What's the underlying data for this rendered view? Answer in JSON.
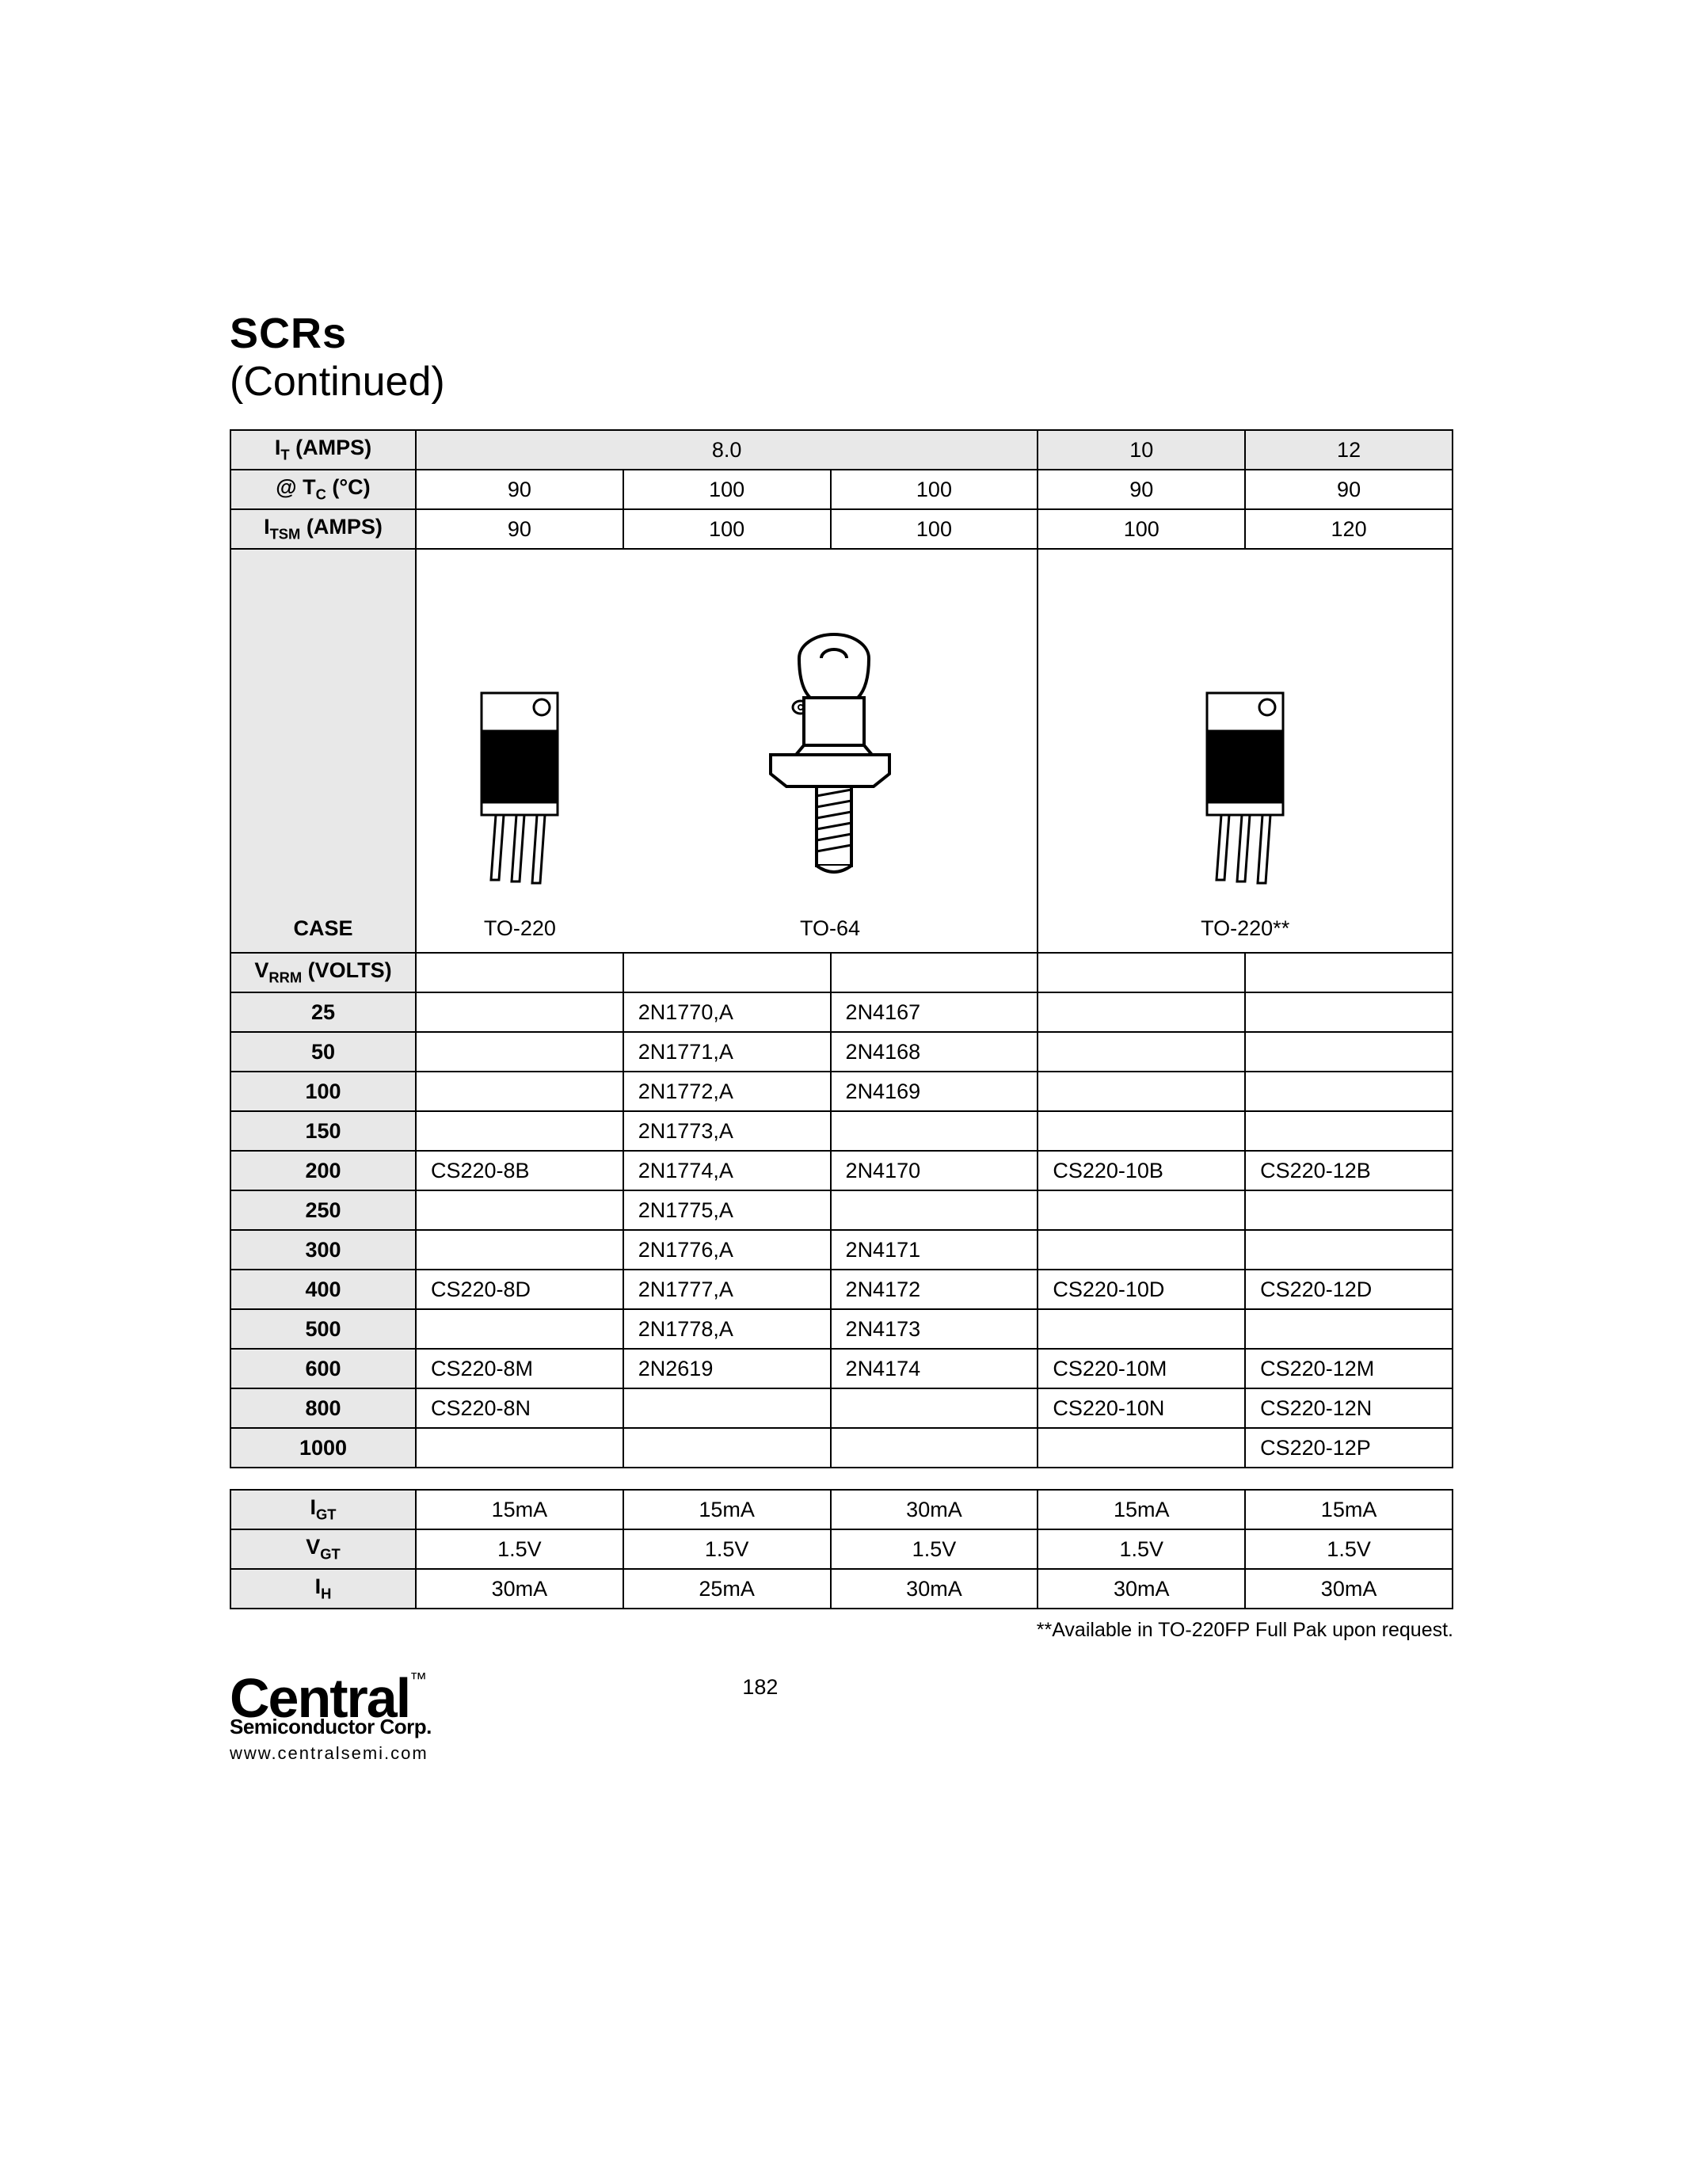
{
  "title": "SCRs",
  "subtitle": "(Continued)",
  "header_rows": {
    "it_label_html": "I<sub>T</sub> (AMPS)",
    "tc_label_html": "@ T<sub>C</sub> (°C)",
    "itsm_label_html": "I<sub>TSM</sub> (AMPS)",
    "it_values": [
      "8.0",
      "10",
      "12"
    ],
    "tc_values": [
      "90",
      "100",
      "100",
      "90",
      "90"
    ],
    "itsm_values": [
      "90",
      "100",
      "100",
      "100",
      "120"
    ]
  },
  "case_row": {
    "label": "CASE",
    "values": [
      "TO-220",
      "TO-64",
      "TO-220**"
    ]
  },
  "vrrm_label_html": "V<sub>RRM</sub> (VOLTS)",
  "part_rows": [
    {
      "v": "25",
      "cells": [
        "",
        "2N1770,A",
        "2N4167",
        "",
        ""
      ]
    },
    {
      "v": "50",
      "cells": [
        "",
        "2N1771,A",
        "2N4168",
        "",
        ""
      ]
    },
    {
      "v": "100",
      "cells": [
        "",
        "2N1772,A",
        "2N4169",
        "",
        ""
      ]
    },
    {
      "v": "150",
      "cells": [
        "",
        "2N1773,A",
        "",
        "",
        ""
      ]
    },
    {
      "v": "200",
      "cells": [
        "CS220-8B",
        "2N1774,A",
        "2N4170",
        "CS220-10B",
        "CS220-12B"
      ]
    },
    {
      "v": "250",
      "cells": [
        "",
        "2N1775,A",
        "",
        "",
        ""
      ]
    },
    {
      "v": "300",
      "cells": [
        "",
        "2N1776,A",
        "2N4171",
        "",
        ""
      ]
    },
    {
      "v": "400",
      "cells": [
        "CS220-8D",
        "2N1777,A",
        "2N4172",
        "CS220-10D",
        "CS220-12D"
      ]
    },
    {
      "v": "500",
      "cells": [
        "",
        "2N1778,A",
        "2N4173",
        "",
        ""
      ]
    },
    {
      "v": "600",
      "cells": [
        "CS220-8M",
        "2N2619",
        "2N4174",
        "CS220-10M",
        "CS220-12M"
      ]
    },
    {
      "v": "800",
      "cells": [
        "CS220-8N",
        "",
        "",
        "CS220-10N",
        "CS220-12N"
      ]
    },
    {
      "v": "1000",
      "cells": [
        "",
        "",
        "",
        "",
        "CS220-12P"
      ]
    }
  ],
  "aux_rows": [
    {
      "label_html": "I<sub>GT</sub>",
      "cells": [
        "15mA",
        "15mA",
        "30mA",
        "15mA",
        "15mA"
      ]
    },
    {
      "label_html": "V<sub>GT</sub>",
      "cells": [
        "1.5V",
        "1.5V",
        "1.5V",
        "1.5V",
        "1.5V"
      ]
    },
    {
      "label_html": "I<sub>H</sub>",
      "cells": [
        "30mA",
        "25mA",
        "30mA",
        "30mA",
        "30mA"
      ]
    }
  ],
  "footnote": "**Available in TO-220FP Full Pak upon request.",
  "footer": {
    "brand_main": "Central",
    "brand_tm": "™",
    "brand_sub": "Semiconductor Corp.",
    "url": "www.centralsemi.com",
    "page_num": "182"
  },
  "colors": {
    "shade_bg": "#e8e8e8",
    "border": "#000000",
    "text": "#000000",
    "bg": "#ffffff"
  }
}
